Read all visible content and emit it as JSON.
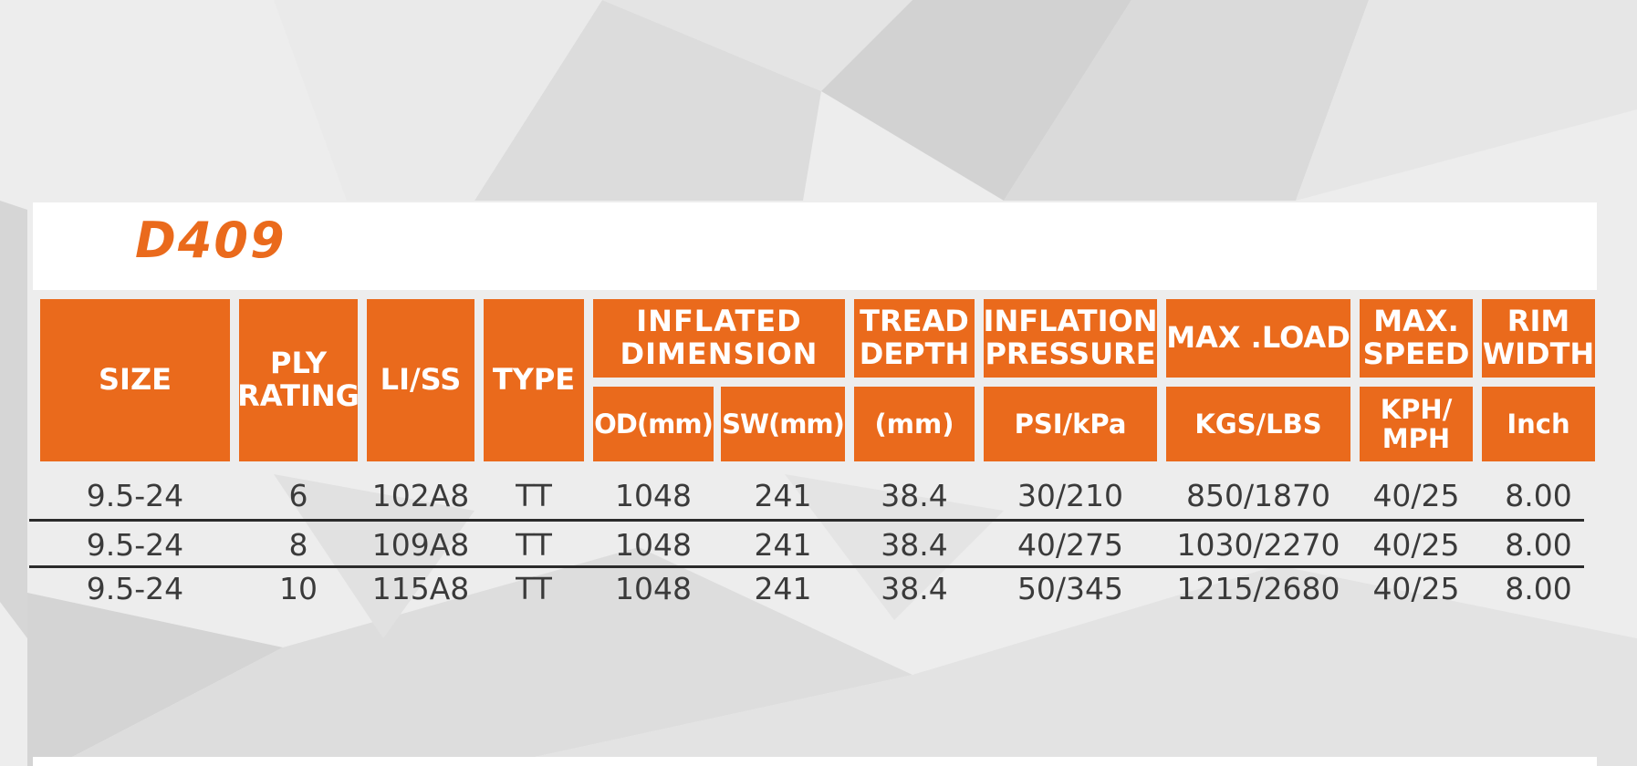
{
  "title": "D409",
  "table": {
    "headers": {
      "size": "SIZE",
      "ply_rating": "PLY\nRATING",
      "li_ss": "LI/SS",
      "type": "TYPE",
      "inflated_dimension": "INFLATED\nDIMENSION",
      "od": "OD(mm)",
      "sw": "SW(mm)",
      "tread_depth": "TREAD\nDEPTH",
      "tread_depth_unit": "(mm)",
      "inflation_pressure": "INFLATION\nPRESSURE",
      "inflation_pressure_unit": "PSI/kPa",
      "max_load": "MAX .LOAD",
      "max_load_unit": "KGS/LBS",
      "max_speed": "MAX.\nSPEED",
      "max_speed_unit": "KPH/\nMPH",
      "rim_width": "RIM\nWIDTH",
      "rim_width_unit": "Inch"
    },
    "rows": [
      {
        "size": "9.5-24",
        "ply": "6",
        "liss": "102A8",
        "type": "TT",
        "od": "1048",
        "sw": "241",
        "tread": "38.4",
        "pressure": "30/210",
        "load": "850/1870",
        "speed": "40/25",
        "rim": "8.00"
      },
      {
        "size": "9.5-24",
        "ply": "8",
        "liss": "109A8",
        "type": "TT",
        "od": "1048",
        "sw": "241",
        "tread": "38.4",
        "pressure": "40/275",
        "load": "1030/2270",
        "speed": "40/25",
        "rim": "8.00"
      },
      {
        "size": "9.5-24",
        "ply": "10",
        "liss": "115A8",
        "type": "TT",
        "od": "1048",
        "sw": "241",
        "tread": "38.4",
        "pressure": "50/345",
        "load": "1215/2680",
        "speed": "40/25",
        "rim": "8.00"
      }
    ]
  },
  "colors": {
    "accent": "#ea6a1c",
    "header_text": "#ffffff",
    "body_text": "#3a3a3a",
    "background": "#ececec",
    "rule": "#2b2b2b"
  }
}
